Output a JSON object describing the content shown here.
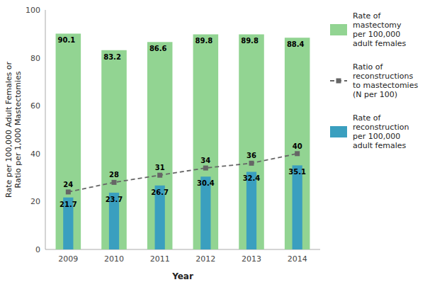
{
  "chart_data": {
    "type": "bar",
    "xlabel": "Year",
    "ylabel": "Rate per 100,000 Adult Females or\nRatio per 1,000 Mastectomies",
    "categories": [
      "2009",
      "2010",
      "2011",
      "2012",
      "2013",
      "2014"
    ],
    "series": [
      {
        "name": "Rate of\nmastectomy\nper 100,000\nadult females",
        "type": "bar",
        "color": "#92d492",
        "values": [
          90.1,
          83.2,
          86.6,
          89.8,
          89.8,
          88.4
        ]
      },
      {
        "name": "Ratio of\nreconstructions\nto mastectomies\n(N per 100)",
        "type": "line",
        "color": "#666666",
        "line_style": "dashed",
        "marker": "square",
        "values": [
          24,
          28,
          31,
          34,
          36,
          40
        ]
      },
      {
        "name": "Rate of\nreconstruction\nper 100,000\nadult females",
        "type": "bar",
        "color": "#3a9fbf",
        "values": [
          21.7,
          23.7,
          26.7,
          30.4,
          32.4,
          35.1
        ]
      }
    ],
    "ylim": [
      0,
      100
    ],
    "yticks": [
      0,
      20,
      40,
      60,
      80,
      100
    ],
    "grid": false,
    "legend": "right",
    "data_labels": true
  }
}
